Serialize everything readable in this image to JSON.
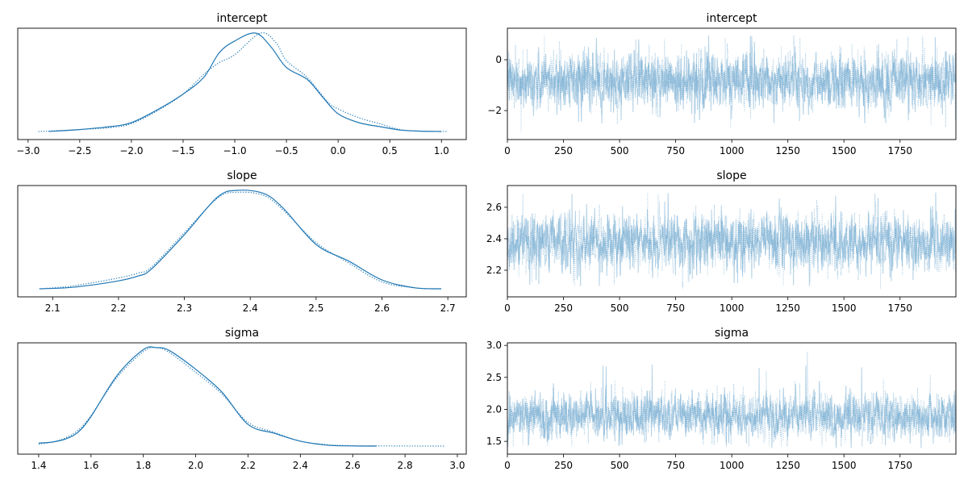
{
  "chart_data": [
    {
      "type": "line",
      "panel": "kde",
      "title": "intercept",
      "xlim": [
        -3.1,
        1.24
      ],
      "xticks": [
        -3.0,
        -2.5,
        -2.0,
        -1.5,
        -1.0,
        -0.5,
        0.0,
        0.5,
        1.0
      ],
      "xtick_labels": [
        "−3.0",
        "−2.5",
        "−2.0",
        "−1.5",
        "−1.0",
        "−0.5",
        "0.0",
        "0.5",
        "1.0"
      ],
      "yticks": [],
      "color": "#1f77b4",
      "series": [
        {
          "style": "solid",
          "x": [
            -2.8,
            -2.5,
            -2.2,
            -2.0,
            -1.75,
            -1.5,
            -1.3,
            -1.15,
            -1.0,
            -0.8,
            -0.65,
            -0.5,
            -0.3,
            -0.15,
            0.0,
            0.2,
            0.4,
            0.6,
            0.8,
            1.0
          ],
          "density": [
            0,
            0.02,
            0.05,
            0.09,
            0.22,
            0.38,
            0.55,
            0.8,
            0.92,
            1.0,
            0.86,
            0.65,
            0.53,
            0.35,
            0.18,
            0.09,
            0.05,
            0.015,
            0.003,
            0
          ]
        },
        {
          "style": "dotted",
          "x": [
            -2.9,
            -2.5,
            -2.2,
            -2.0,
            -1.75,
            -1.5,
            -1.3,
            -1.15,
            -1.0,
            -0.75,
            -0.6,
            -0.5,
            -0.3,
            -0.1,
            0.0,
            0.2,
            0.4,
            0.6,
            0.8,
            1.05
          ],
          "density": [
            0,
            0.02,
            0.04,
            0.08,
            0.21,
            0.38,
            0.58,
            0.7,
            0.78,
            1.0,
            0.9,
            0.72,
            0.55,
            0.3,
            0.23,
            0.14,
            0.08,
            0.02,
            0.004,
            0
          ]
        }
      ]
    },
    {
      "type": "line",
      "panel": "trace",
      "title": "intercept",
      "xlim": [
        0,
        1999
      ],
      "xticks": [
        0,
        250,
        500,
        750,
        1000,
        1250,
        1500,
        1750
      ],
      "xtick_labels": [
        "0",
        "250",
        "500",
        "750",
        "1000",
        "1250",
        "1500",
        "1750"
      ],
      "ylim": [
        -3.14,
        1.24
      ],
      "yticks": [
        0,
        -2
      ],
      "ytick_labels": [
        "0",
        "−2"
      ],
      "color": "#1f77b4",
      "series": [
        {
          "style": "solid",
          "draws": 2000,
          "mean": -0.85,
          "sd": 0.52,
          "min": -2.5,
          "max": 0.95
        },
        {
          "style": "dotted",
          "draws": 2000,
          "mean": -0.8,
          "sd": 0.55,
          "min": -2.85,
          "max": 1.1
        }
      ]
    },
    {
      "type": "line",
      "panel": "kde",
      "title": "slope",
      "xlim": [
        2.047,
        2.728
      ],
      "xticks": [
        2.1,
        2.2,
        2.3,
        2.4,
        2.5,
        2.6,
        2.7
      ],
      "xtick_labels": [
        "2.1",
        "2.2",
        "2.3",
        "2.4",
        "2.5",
        "2.6",
        "2.7"
      ],
      "yticks": [],
      "color": "#1f77b4",
      "series": [
        {
          "style": "solid",
          "x": [
            2.08,
            2.12,
            2.15,
            2.2,
            2.23,
            2.25,
            2.3,
            2.35,
            2.38,
            2.42,
            2.45,
            2.5,
            2.55,
            2.6,
            2.65,
            2.69
          ],
          "density": [
            0,
            0.01,
            0.03,
            0.08,
            0.13,
            0.2,
            0.55,
            0.93,
            1.0,
            0.97,
            0.82,
            0.45,
            0.28,
            0.09,
            0.01,
            0
          ]
        },
        {
          "style": "dotted",
          "x": [
            2.08,
            2.12,
            2.15,
            2.2,
            2.23,
            2.25,
            2.3,
            2.35,
            2.38,
            2.42,
            2.45,
            2.5,
            2.55,
            2.6,
            2.65,
            2.69
          ],
          "density": [
            0,
            0.02,
            0.05,
            0.11,
            0.16,
            0.22,
            0.57,
            0.92,
            0.98,
            0.95,
            0.8,
            0.47,
            0.26,
            0.07,
            0.01,
            0
          ]
        }
      ]
    },
    {
      "type": "line",
      "panel": "trace",
      "title": "slope",
      "xlim": [
        0,
        1999
      ],
      "xticks": [
        0,
        250,
        500,
        750,
        1000,
        1250,
        1500,
        1750
      ],
      "xtick_labels": [
        "0",
        "250",
        "500",
        "750",
        "1000",
        "1250",
        "1500",
        "1750"
      ],
      "ylim": [
        2.031,
        2.738
      ],
      "yticks": [
        2.2,
        2.4,
        2.6
      ],
      "ytick_labels": [
        "2.2",
        "2.4",
        "2.6"
      ],
      "color": "#1f77b4",
      "series": [
        {
          "style": "solid",
          "draws": 2000,
          "mean": 2.38,
          "sd": 0.085,
          "min": 2.1,
          "max": 2.7
        },
        {
          "style": "dotted",
          "draws": 2000,
          "mean": 2.38,
          "sd": 0.088,
          "min": 2.08,
          "max": 2.7
        }
      ]
    },
    {
      "type": "line",
      "panel": "kde",
      "title": "sigma",
      "xlim": [
        1.32,
        3.034
      ],
      "xticks": [
        1.4,
        1.6,
        1.8,
        2.0,
        2.2,
        2.4,
        2.6,
        2.8,
        3.0
      ],
      "xtick_labels": [
        "1.4",
        "1.6",
        "1.8",
        "2.0",
        "2.2",
        "2.4",
        "2.6",
        "2.8",
        "3.0"
      ],
      "yticks": [],
      "color": "#1f77b4",
      "series": [
        {
          "style": "solid",
          "x": [
            1.4,
            1.45,
            1.5,
            1.55,
            1.6,
            1.7,
            1.8,
            1.85,
            1.9,
            2.0,
            2.1,
            2.2,
            2.3,
            2.4,
            2.5,
            2.6,
            2.69
          ],
          "density": [
            0.03,
            0.04,
            0.07,
            0.14,
            0.3,
            0.72,
            0.98,
            1.0,
            0.97,
            0.78,
            0.55,
            0.22,
            0.13,
            0.05,
            0.01,
            0.002,
            0
          ]
        },
        {
          "style": "dotted",
          "x": [
            1.4,
            1.45,
            1.5,
            1.55,
            1.6,
            1.7,
            1.8,
            1.85,
            1.9,
            2.0,
            2.1,
            2.2,
            2.3,
            2.4,
            2.5,
            2.6,
            2.8,
            2.95
          ],
          "density": [
            0.02,
            0.04,
            0.08,
            0.16,
            0.31,
            0.7,
            0.96,
            1.0,
            0.95,
            0.75,
            0.53,
            0.24,
            0.14,
            0.05,
            0.015,
            0.004,
            0.001,
            0
          ]
        }
      ]
    },
    {
      "type": "line",
      "panel": "trace",
      "title": "sigma",
      "xlim": [
        0,
        1999
      ],
      "xticks": [
        0,
        250,
        500,
        750,
        1000,
        1250,
        1500,
        1750
      ],
      "xtick_labels": [
        "0",
        "250",
        "500",
        "750",
        "1000",
        "1250",
        "1500",
        "1750"
      ],
      "ylim": [
        1.3,
        3.04
      ],
      "yticks": [
        1.5,
        2.0,
        2.5,
        3.0
      ],
      "ytick_labels": [
        "1.5",
        "2.0",
        "2.5",
        "3.0"
      ],
      "color": "#1f77b4",
      "series": [
        {
          "style": "solid",
          "draws": 2000,
          "mean": 1.9,
          "sd": 0.17,
          "min": 1.4,
          "max": 2.7
        },
        {
          "style": "dotted",
          "draws": 2000,
          "mean": 1.9,
          "sd": 0.18,
          "min": 1.42,
          "max": 2.95
        }
      ]
    }
  ]
}
